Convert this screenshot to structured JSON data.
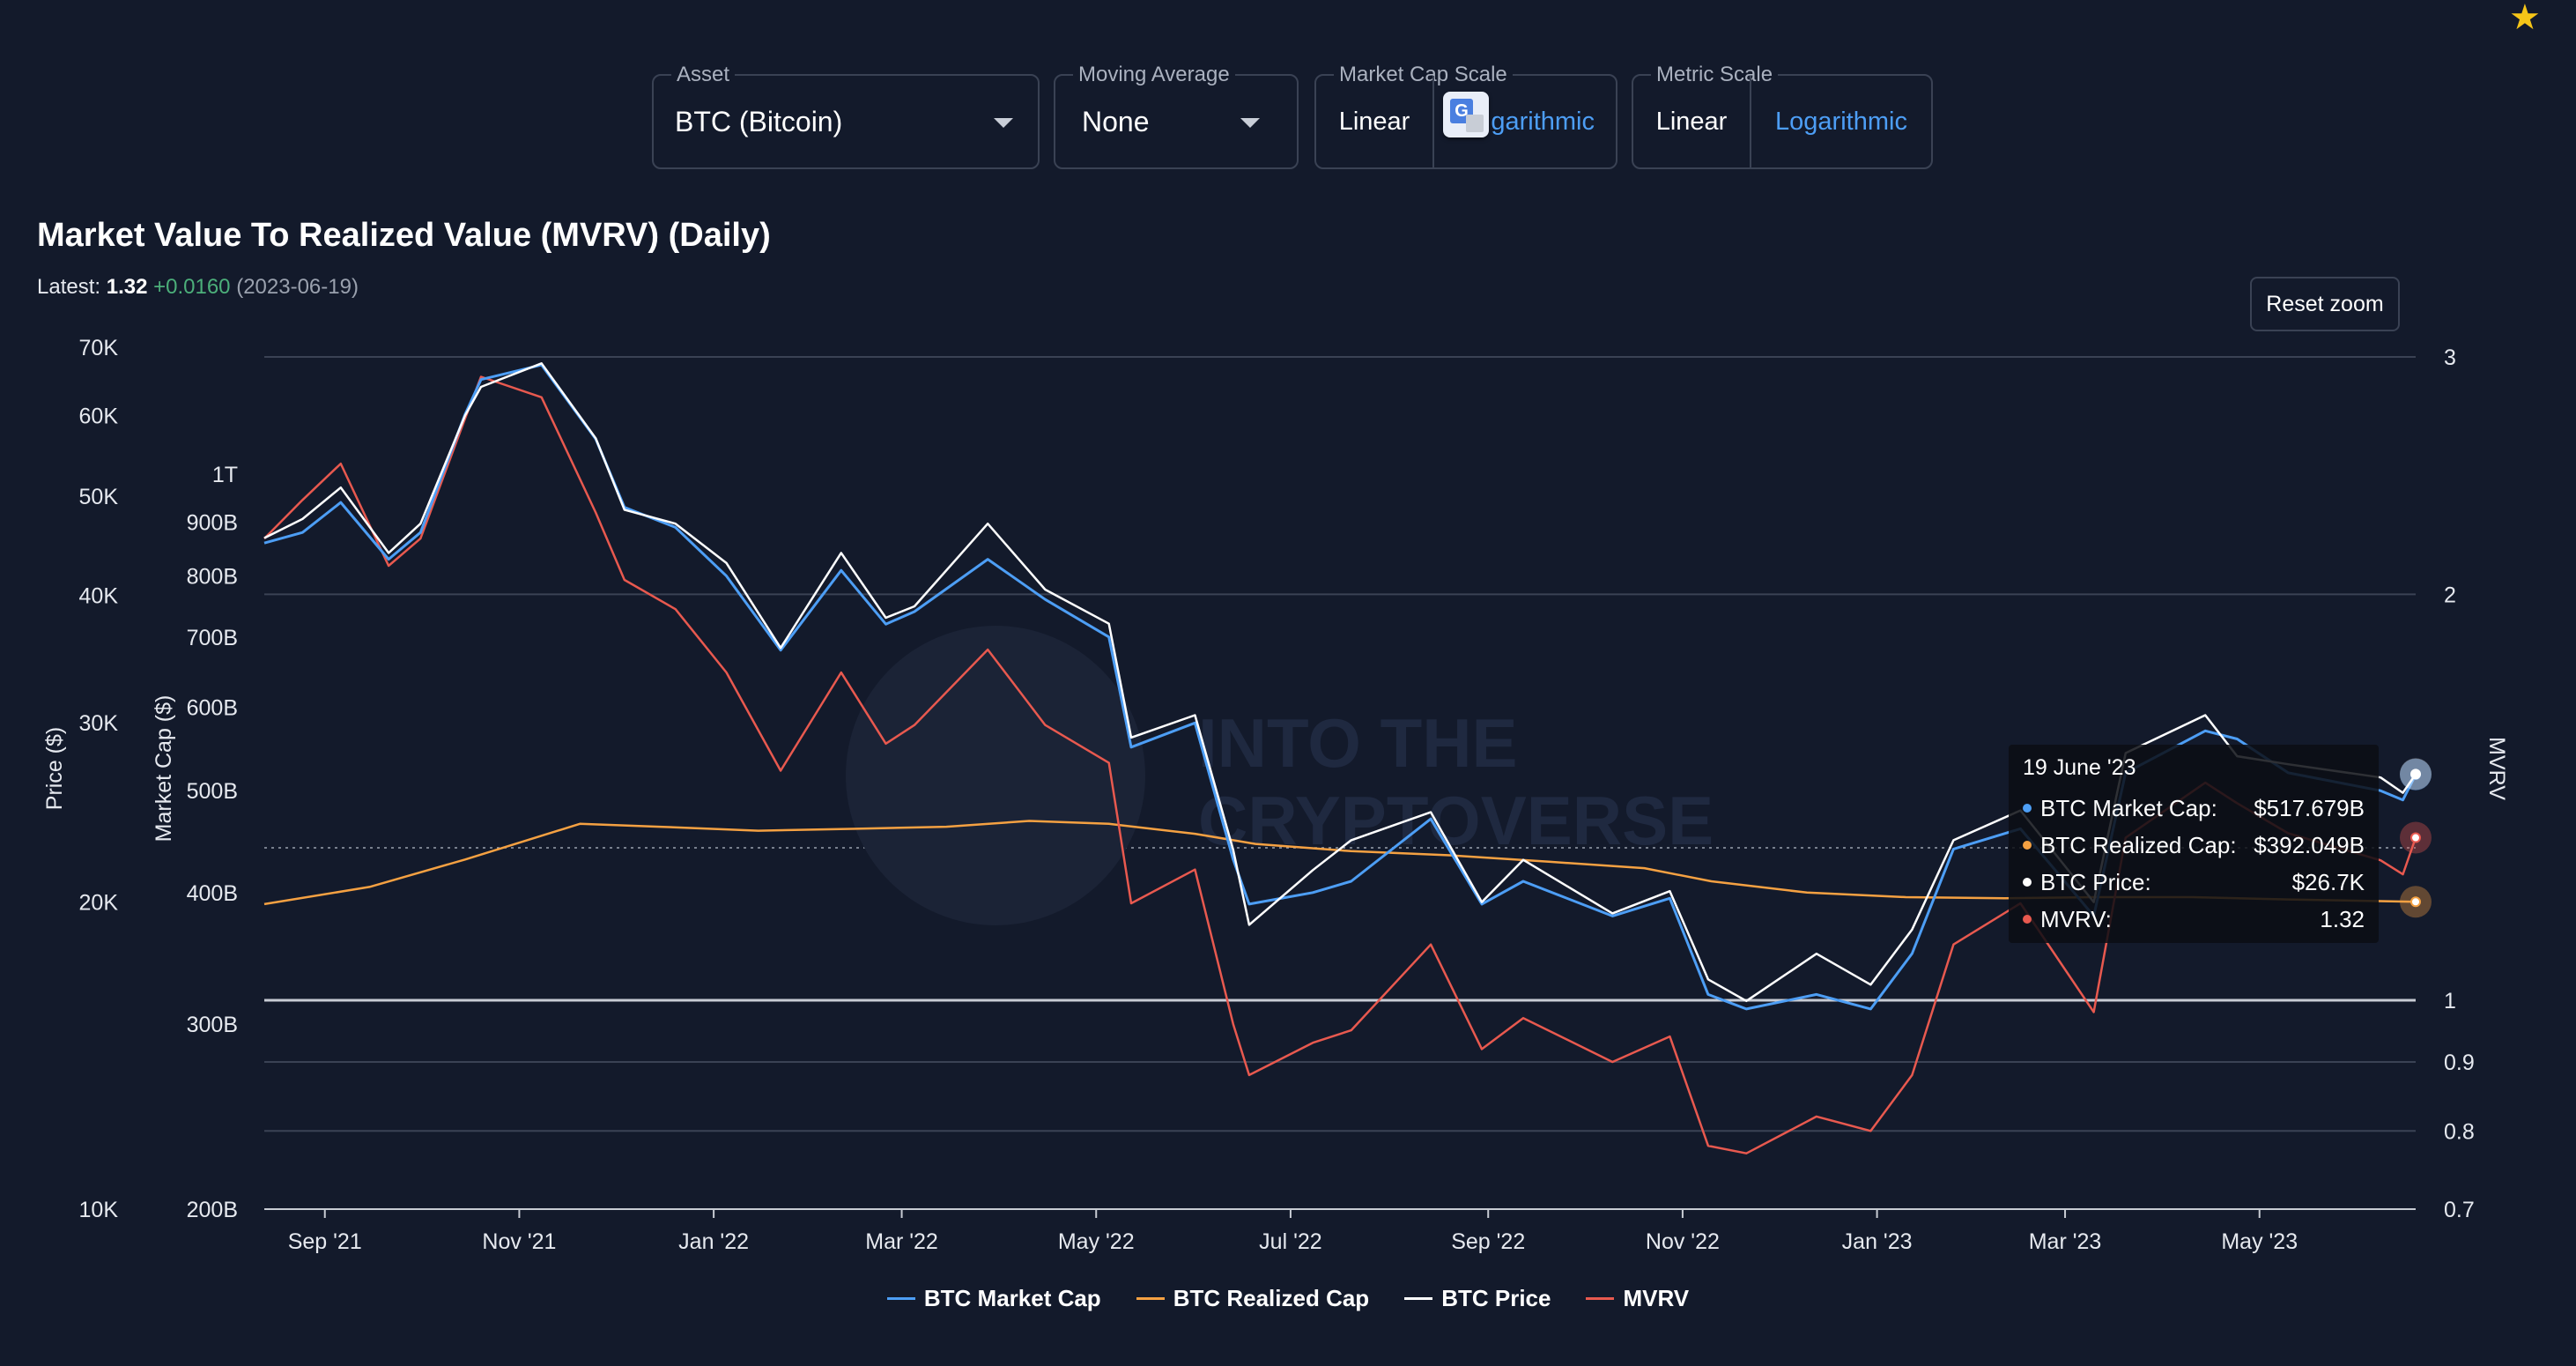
{
  "controls": {
    "asset": {
      "label": "Asset",
      "value": "BTC (Bitcoin)"
    },
    "moving_average": {
      "label": "Moving Average",
      "value": "None"
    },
    "market_cap_scale": {
      "label": "Market Cap Scale",
      "options": [
        "Linear",
        "Logarithmic"
      ],
      "selected": "Logarithmic"
    },
    "metric_scale": {
      "label": "Metric Scale",
      "options": [
        "Linear",
        "Logarithmic"
      ],
      "selected": "Logarithmic"
    },
    "translate_overlay_icon": "google-translate-icon",
    "market_cap_log_visible_text": "garithmic"
  },
  "header": {
    "title": "Market Value To Realized Value (MVRV) (Daily)",
    "latest_label": "Latest:",
    "latest_value": "1.32",
    "latest_change": "+0.0160",
    "latest_date": "(2023-06-19)"
  },
  "reset_zoom_label": "Reset zoom",
  "tooltip": {
    "date": "19 June '23",
    "rows": [
      {
        "name": "BTC Market Cap:",
        "value": "$517.679B",
        "color": "#4d9ef5"
      },
      {
        "name": "BTC Realized Cap:",
        "value": "$392.049B",
        "color": "#f5a142"
      },
      {
        "name": "BTC Price:",
        "value": "$26.7K",
        "color": "#ffffff"
      },
      {
        "name": "MVRV:",
        "value": "1.32",
        "color": "#e8594f"
      }
    ]
  },
  "colors": {
    "background": "#131a2b",
    "market_cap": "#4d9ef5",
    "realized_cap": "#f5a142",
    "price": "#ffffff",
    "mvrv": "#e8594f",
    "grid": "#3a4254"
  },
  "chart_data": {
    "type": "line",
    "title": "Market Value To Realized Value (MVRV) (Daily)",
    "axes": {
      "price": {
        "label": "Price ($)",
        "scale": "log",
        "ticks": [
          "10K",
          "20K",
          "30K",
          "40K",
          "50K",
          "60K",
          "70K"
        ],
        "tick_values": [
          10000,
          20000,
          30000,
          40000,
          50000,
          60000,
          70000
        ]
      },
      "market_cap": {
        "label": "Market Cap ($)",
        "scale": "log",
        "ticks": [
          "200B",
          "300B",
          "400B",
          "500B",
          "600B",
          "700B",
          "800B",
          "900B",
          "1T"
        ],
        "tick_values": [
          200,
          300,
          400,
          500,
          600,
          700,
          800,
          900,
          1000
        ]
      },
      "mvrv": {
        "label": "MVRV",
        "scale": "log",
        "ticks": [
          "0.7",
          "0.8",
          "0.9",
          "1",
          "2",
          "3"
        ],
        "tick_values": [
          0.7,
          0.8,
          0.9,
          1,
          2,
          3
        ]
      },
      "x": {
        "ticks": [
          "Sep '21",
          "Nov '21",
          "Jan '22",
          "Mar '22",
          "May '22",
          "Jul '22",
          "Sep '22",
          "Nov '22",
          "Jan '23",
          "Mar '23",
          "May '23"
        ],
        "tick_dates": [
          "2021-09-01",
          "2021-11-01",
          "2022-01-01",
          "2022-03-01",
          "2022-05-01",
          "2022-07-01",
          "2022-09-01",
          "2022-11-01",
          "2023-01-01",
          "2023-03-01",
          "2023-05-01"
        ],
        "range": [
          "2021-08-13",
          "2023-06-19"
        ]
      }
    },
    "series": [
      {
        "name": "BTC Market Cap",
        "axis": "market_cap",
        "unit": "billion USD",
        "x": [
          "2021-08-13",
          "2021-08-25",
          "2021-09-06",
          "2021-09-21",
          "2021-10-01",
          "2021-10-15",
          "2021-10-20",
          "2021-11-08",
          "2021-11-25",
          "2021-12-04",
          "2021-12-20",
          "2022-01-05",
          "2022-01-22",
          "2022-02-10",
          "2022-02-24",
          "2022-03-05",
          "2022-03-28",
          "2022-04-15",
          "2022-05-05",
          "2022-05-12",
          "2022-06-01",
          "2022-06-13",
          "2022-06-18",
          "2022-07-08",
          "2022-07-20",
          "2022-08-14",
          "2022-08-30",
          "2022-09-12",
          "2022-10-10",
          "2022-10-28",
          "2022-11-09",
          "2022-11-21",
          "2022-12-13",
          "2022-12-30",
          "2023-01-12",
          "2023-01-25",
          "2023-02-15",
          "2023-03-10",
          "2023-03-20",
          "2023-04-14",
          "2023-04-24",
          "2023-05-10",
          "2023-06-08",
          "2023-06-15",
          "2023-06-19"
        ],
        "values": [
          860,
          880,
          940,
          830,
          880,
          1140,
          1230,
          1270,
          1080,
          930,
          890,
          800,
          680,
          810,
          720,
          740,
          830,
          760,
          700,
          550,
          580,
          430,
          390,
          400,
          410,
          470,
          390,
          410,
          380,
          395,
          320,
          310,
          320,
          310,
          350,
          440,
          460,
          380,
          520,
          570,
          560,
          520,
          500,
          490,
          518
        ]
      },
      {
        "name": "BTC Realized Cap",
        "axis": "market_cap",
        "unit": "billion USD",
        "x": [
          "2021-08-13",
          "2021-09-15",
          "2021-10-15",
          "2021-11-20",
          "2021-12-15",
          "2022-01-15",
          "2022-02-15",
          "2022-03-15",
          "2022-04-10",
          "2022-05-05",
          "2022-06-01",
          "2022-06-20",
          "2022-07-20",
          "2022-08-20",
          "2022-09-20",
          "2022-10-20",
          "2022-11-10",
          "2022-12-10",
          "2023-01-10",
          "2023-02-10",
          "2023-03-10",
          "2023-04-10",
          "2023-05-10",
          "2023-06-19"
        ],
        "values": [
          390,
          405,
          430,
          465,
          462,
          458,
          460,
          462,
          468,
          465,
          455,
          445,
          438,
          434,
          428,
          422,
          410,
          400,
          396,
          395,
          396,
          396,
          394,
          392
        ]
      },
      {
        "name": "BTC Price",
        "axis": "price",
        "unit": "USD",
        "x": [
          "2021-08-13",
          "2021-08-25",
          "2021-09-06",
          "2021-09-21",
          "2021-10-01",
          "2021-10-15",
          "2021-10-20",
          "2021-11-08",
          "2021-11-25",
          "2021-12-04",
          "2021-12-20",
          "2022-01-05",
          "2022-01-22",
          "2022-02-10",
          "2022-02-24",
          "2022-03-05",
          "2022-03-28",
          "2022-04-15",
          "2022-05-05",
          "2022-05-12",
          "2022-06-01",
          "2022-06-13",
          "2022-06-18",
          "2022-07-08",
          "2022-07-20",
          "2022-08-14",
          "2022-08-30",
          "2022-09-12",
          "2022-10-10",
          "2022-10-28",
          "2022-11-09",
          "2022-11-21",
          "2022-12-13",
          "2022-12-30",
          "2023-01-12",
          "2023-01-25",
          "2023-02-15",
          "2023-03-10",
          "2023-03-20",
          "2023-04-14",
          "2023-04-24",
          "2023-05-10",
          "2023-06-08",
          "2023-06-15",
          "2023-06-19"
        ],
        "values": [
          45500,
          47500,
          51000,
          44000,
          47000,
          60000,
          64000,
          67500,
          57000,
          48500,
          47000,
          43000,
          35500,
          44000,
          38000,
          39000,
          47000,
          40500,
          37500,
          29000,
          30500,
          22500,
          19000,
          21500,
          23000,
          24500,
          20000,
          22000,
          19500,
          20500,
          16800,
          16000,
          17800,
          16600,
          18800,
          23000,
          24600,
          20000,
          28000,
          30500,
          27800,
          27300,
          26500,
          25600,
          26700
        ]
      },
      {
        "name": "MVRV",
        "axis": "mvrv",
        "unit": "ratio",
        "x": [
          "2021-08-13",
          "2021-08-25",
          "2021-09-06",
          "2021-09-21",
          "2021-10-01",
          "2021-10-15",
          "2021-10-20",
          "2021-11-08",
          "2021-11-25",
          "2021-12-04",
          "2021-12-20",
          "2022-01-05",
          "2022-01-22",
          "2022-02-10",
          "2022-02-24",
          "2022-03-05",
          "2022-03-28",
          "2022-04-15",
          "2022-05-05",
          "2022-05-12",
          "2022-06-01",
          "2022-06-13",
          "2022-06-18",
          "2022-07-08",
          "2022-07-20",
          "2022-08-14",
          "2022-08-30",
          "2022-09-12",
          "2022-10-10",
          "2022-10-28",
          "2022-11-09",
          "2022-11-21",
          "2022-12-13",
          "2022-12-30",
          "2023-01-12",
          "2023-01-25",
          "2023-02-15",
          "2023-03-10",
          "2023-03-20",
          "2023-04-14",
          "2023-04-24",
          "2023-05-10",
          "2023-06-08",
          "2023-06-15",
          "2023-06-19"
        ],
        "values": [
          2.2,
          2.35,
          2.5,
          2.1,
          2.2,
          2.7,
          2.9,
          2.8,
          2.3,
          2.05,
          1.95,
          1.75,
          1.48,
          1.75,
          1.55,
          1.6,
          1.82,
          1.6,
          1.5,
          1.18,
          1.25,
          0.96,
          0.88,
          0.93,
          0.95,
          1.1,
          0.92,
          0.97,
          0.9,
          0.94,
          0.78,
          0.77,
          0.82,
          0.8,
          0.88,
          1.1,
          1.18,
          0.98,
          1.32,
          1.45,
          1.4,
          1.33,
          1.27,
          1.24,
          1.32
        ]
      }
    ],
    "legend_position": "bottom-center",
    "grid": true
  }
}
